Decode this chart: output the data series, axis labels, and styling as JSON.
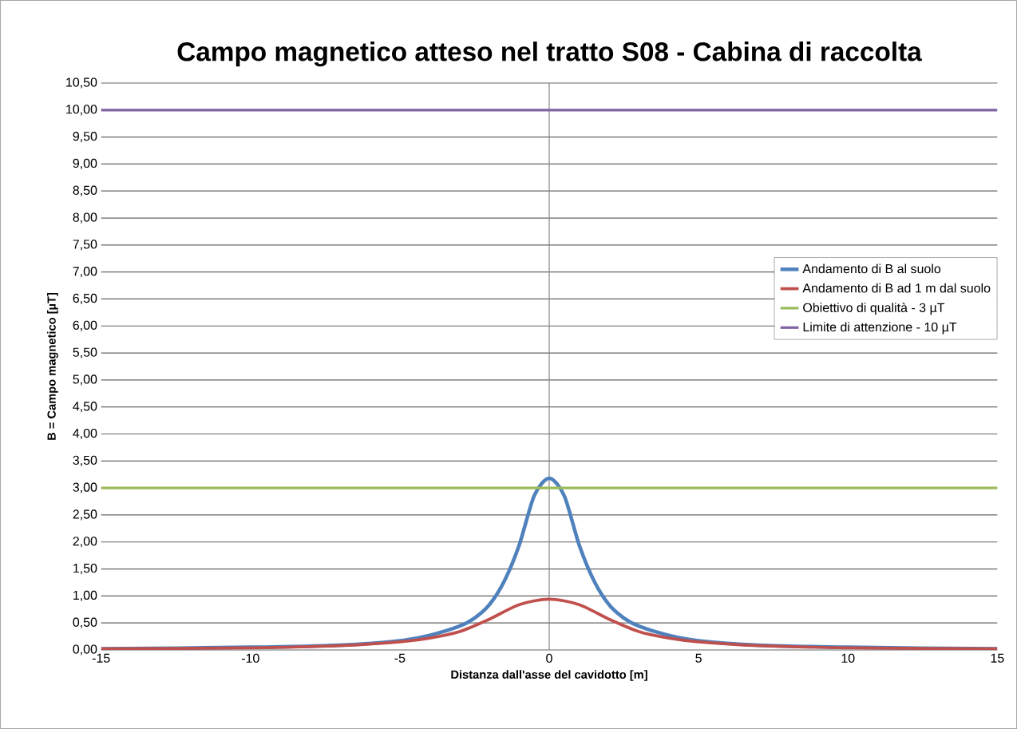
{
  "chart_data": {
    "type": "line",
    "title": "Campo magnetico atteso nel tratto S08 - Cabina di raccolta",
    "xlabel": "Distanza dall'asse del cavidotto [m]",
    "ylabel": "B = Campo magnetico [µT]",
    "series": [
      {
        "name": "Andamento di B al suolo",
        "color": "#4f81bd",
        "x": [
          -15,
          -10,
          -7,
          -5,
          -4,
          -3,
          -2.5,
          -2,
          -1.5,
          -1,
          -0.5,
          0,
          0.5,
          1,
          1.5,
          2,
          2.5,
          3,
          4,
          5,
          7,
          10,
          15
        ],
        "values": [
          0.02,
          0.05,
          0.09,
          0.17,
          0.27,
          0.44,
          0.59,
          0.84,
          1.28,
          1.95,
          2.86,
          3.18,
          2.86,
          1.95,
          1.28,
          0.84,
          0.59,
          0.44,
          0.27,
          0.17,
          0.09,
          0.05,
          0.02
        ]
      },
      {
        "name": "Andamento di B ad 1 m dal suolo",
        "color": "#c0504d",
        "x": [
          -15,
          -10,
          -7,
          -5,
          -4,
          -3,
          -2,
          -1,
          0,
          1,
          2,
          3,
          4,
          5,
          7,
          10,
          15
        ],
        "values": [
          0.02,
          0.04,
          0.08,
          0.15,
          0.22,
          0.34,
          0.57,
          0.84,
          0.94,
          0.84,
          0.57,
          0.34,
          0.22,
          0.15,
          0.08,
          0.04,
          0.02
        ]
      },
      {
        "name": "Obiettivo di qualità - 3 µT",
        "color": "#9bbb59",
        "x": [
          -15,
          15
        ],
        "values": [
          3,
          3
        ]
      },
      {
        "name": "Limite di attenzione - 10 µT",
        "color": "#8064a2",
        "x": [
          -15,
          15
        ],
        "values": [
          10,
          10
        ]
      }
    ],
    "xlim": [
      -15,
      15
    ],
    "xticks": [
      -15,
      -10,
      -5,
      0,
      5,
      10,
      15
    ],
    "ylim": [
      0,
      10.5
    ],
    "yticks": [
      {
        "value": 0,
        "label": "0,00"
      },
      {
        "value": 0.5,
        "label": "0,50"
      },
      {
        "value": 1,
        "label": "1,00"
      },
      {
        "value": 1.5,
        "label": "1,50"
      },
      {
        "value": 2,
        "label": "2,00"
      },
      {
        "value": 2.5,
        "label": "2,50"
      },
      {
        "value": 3,
        "label": "3,00"
      },
      {
        "value": 3.5,
        "label": "3,50"
      },
      {
        "value": 4,
        "label": "4,00"
      },
      {
        "value": 4.5,
        "label": "4,50"
      },
      {
        "value": 5,
        "label": "5,00"
      },
      {
        "value": 5.5,
        "label": "5,50"
      },
      {
        "value": 6,
        "label": "6,00"
      },
      {
        "value": 6.5,
        "label": "6,50"
      },
      {
        "value": 7,
        "label": "7,00"
      },
      {
        "value": 7.5,
        "label": "7,50"
      },
      {
        "value": 8,
        "label": "8,00"
      },
      {
        "value": 8.5,
        "label": "8,50"
      },
      {
        "value": 9,
        "label": "9,00"
      },
      {
        "value": 9.5,
        "label": "9,50"
      },
      {
        "value": 10,
        "label": "10,00"
      },
      {
        "value": 10.5,
        "label": "10,50"
      }
    ],
    "ref_lines": [
      {
        "axis": "x",
        "value": 0,
        "color": "#868686"
      }
    ],
    "grid": "y",
    "legend": "right",
    "marker": "none",
    "line_style": "solid"
  }
}
